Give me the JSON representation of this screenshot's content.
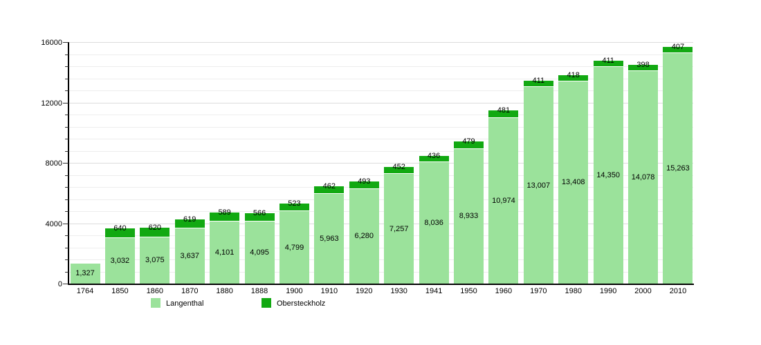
{
  "chart_data": {
    "type": "bar",
    "stacked": true,
    "title": "",
    "xlabel": "",
    "ylabel": "",
    "categories": [
      "1764",
      "1850",
      "1860",
      "1870",
      "1880",
      "1888",
      "1900",
      "1910",
      "1920",
      "1930",
      "1941",
      "1950",
      "1960",
      "1970",
      "1980",
      "1990",
      "2000",
      "2010"
    ],
    "series": [
      {
        "name": "Langenthal",
        "color": "#9BE29B",
        "values": [
          1327,
          3032,
          3075,
          3637,
          4101,
          4095,
          4799,
          5963,
          6280,
          7257,
          8036,
          8933,
          10974,
          13007,
          13408,
          14350,
          14078,
          15263
        ]
      },
      {
        "name": "Obersteckholz",
        "color": "#12A912",
        "values": [
          null,
          640,
          620,
          619,
          589,
          566,
          523,
          462,
          493,
          452,
          436,
          479,
          481,
          411,
          418,
          411,
          398,
          407
        ]
      }
    ],
    "ylim": [
      0,
      16000
    ],
    "y_major_ticks": [
      0,
      4000,
      8000,
      12000,
      16000
    ],
    "y_minor_step": 800,
    "grid": true,
    "legend_position": "bottom",
    "value_labels": "on",
    "colors": {
      "grid_major": "#dcdcdc",
      "grid_minor": "#ededed",
      "axis": "#000000",
      "text": "#000000"
    }
  }
}
